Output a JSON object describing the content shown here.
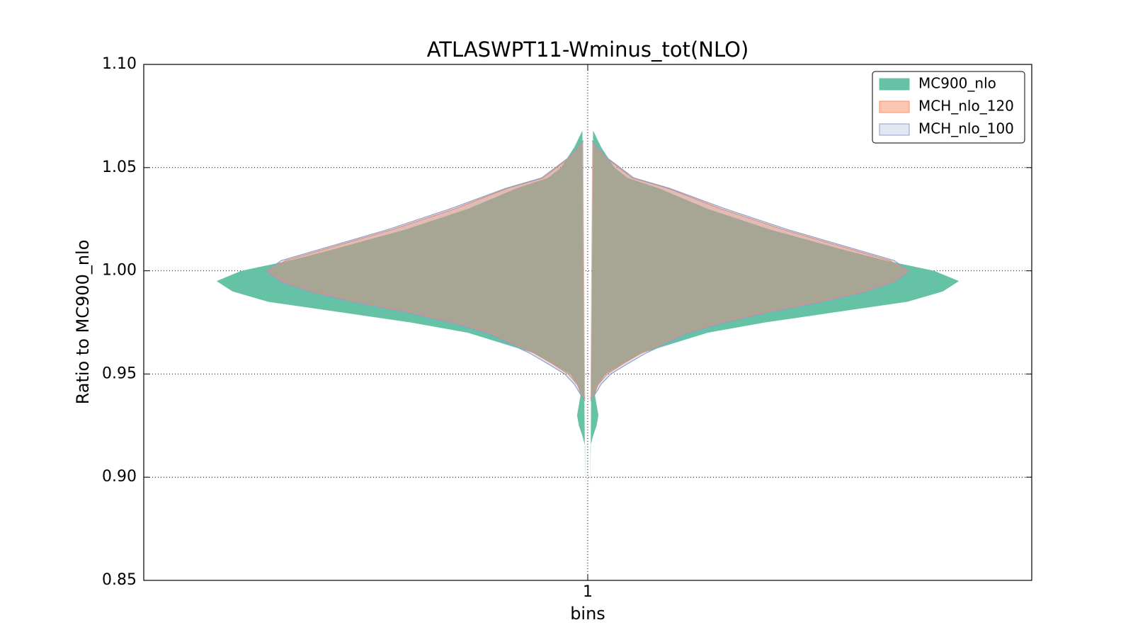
{
  "chart_data": {
    "type": "violin",
    "title": "ATLASWPT11-Wminus_tot(NLO)",
    "xlabel": "bins",
    "ylabel": "Ratio to MC900_nlo",
    "xlim": [
      0.5,
      1.5
    ],
    "xticks": [
      1
    ],
    "ylim": [
      0.85,
      1.1
    ],
    "yticks": [
      {
        "value": 0.85,
        "label": "0.85"
      },
      {
        "value": 0.9,
        "label": "0.90"
      },
      {
        "value": 0.95,
        "label": "0.95"
      },
      {
        "value": 1.0,
        "label": "1.00"
      },
      {
        "value": 1.05,
        "label": "1.05"
      },
      {
        "value": 1.1,
        "label": "1.10"
      }
    ],
    "grid": true,
    "legend": "upper right",
    "series": [
      {
        "name": "MC900_nlo",
        "color": "#66c2a5",
        "opacity": 1.0,
        "y": [
          1.068,
          1.06,
          1.05,
          1.045,
          1.04,
          1.03,
          1.02,
          1.01,
          1.005,
          1.0,
          0.995,
          0.99,
          0.985,
          0.98,
          0.975,
          0.97,
          0.96,
          0.95,
          0.945,
          0.94,
          0.935,
          0.93,
          0.925,
          0.92,
          0.915,
          0.905,
          0.895
        ],
        "half_width": [
          0.006,
          0.015,
          0.03,
          0.045,
          0.08,
          0.135,
          0.205,
          0.29,
          0.335,
          0.39,
          0.418,
          0.4,
          0.36,
          0.28,
          0.2,
          0.135,
          0.06,
          0.02,
          0.012,
          0.008,
          0.01,
          0.012,
          0.01,
          0.006,
          0.003,
          0.003,
          0.003
        ]
      },
      {
        "name": "MCH_nlo_120",
        "color": "#fc8d62",
        "opacity": 0.5,
        "y": [
          1.063,
          1.055,
          1.045,
          1.04,
          1.03,
          1.02,
          1.01,
          1.005,
          1.0,
          0.995,
          0.99,
          0.985,
          0.98,
          0.975,
          0.97,
          0.96,
          0.955,
          0.95,
          0.945,
          0.94,
          0.938
        ],
        "half_width": [
          0.005,
          0.02,
          0.05,
          0.09,
          0.15,
          0.22,
          0.3,
          0.34,
          0.36,
          0.345,
          0.31,
          0.26,
          0.2,
          0.15,
          0.11,
          0.06,
          0.04,
          0.022,
          0.012,
          0.006,
          0.003
        ]
      },
      {
        "name": "MCH_nlo_100",
        "color": "#8da0cb",
        "opacity": 0.25,
        "y": [
          1.063,
          1.055,
          1.045,
          1.04,
          1.03,
          1.02,
          1.01,
          1.005,
          1.0,
          0.995,
          0.99,
          0.985,
          0.98,
          0.975,
          0.97,
          0.96,
          0.955,
          0.95,
          0.945,
          0.94,
          0.937
        ],
        "half_width": [
          0.005,
          0.021,
          0.052,
          0.092,
          0.155,
          0.225,
          0.305,
          0.345,
          0.362,
          0.348,
          0.315,
          0.265,
          0.205,
          0.155,
          0.115,
          0.065,
          0.045,
          0.026,
          0.015,
          0.008,
          0.003
        ]
      }
    ]
  }
}
